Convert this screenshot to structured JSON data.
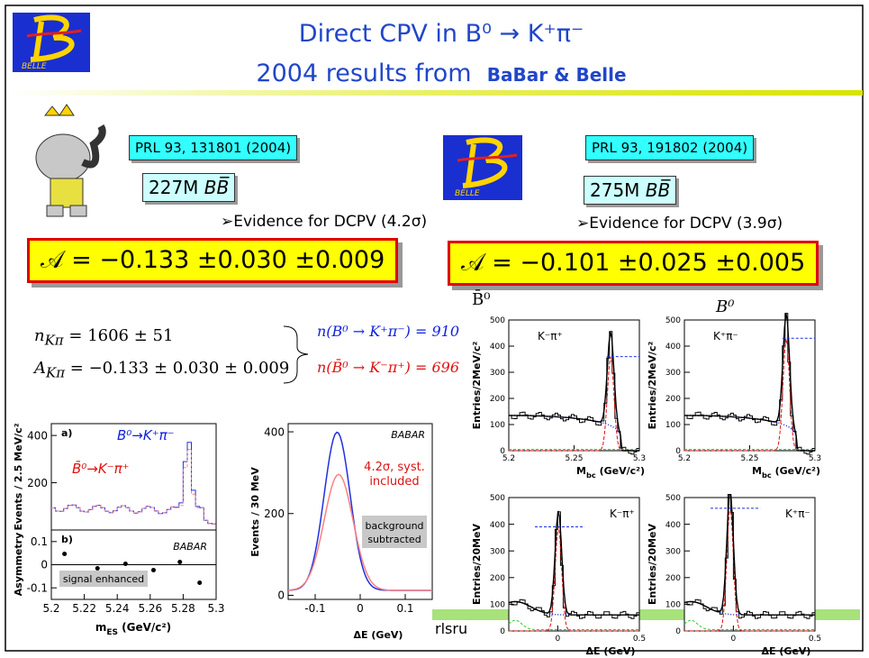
{
  "header": {
    "title": "Direct CPV in B⁰ → K⁺π⁻",
    "subtitle": "2004 results from",
    "subtitle_emphasis": "BaBar & Belle",
    "logo_label": "BELLE"
  },
  "babar": {
    "reference": "PRL 93, 131801 (2004)",
    "sample": "227M",
    "sample_pair": "BB̅",
    "evidence": "➢Evidence for DCPV (4.2σ)",
    "asymmetry": "𝒜 = −0.133 ±0.030 ±0.009"
  },
  "belle": {
    "logo_label": "BELLE",
    "reference": "PRL 93, 191802 (2004)",
    "sample": "275M",
    "sample_pair": "BB̅",
    "evidence": "➢Evidence for DCPV (3.9σ)",
    "asymmetry": "𝒜 = −0.101 ±0.025 ±0.005"
  },
  "formulas": {
    "n_symbol": "n",
    "n_sub": "Kπ",
    "n_value": " = 1606 ± 51",
    "a_symbol": "A",
    "a_sub": "Kπ",
    "a_value": " = −0.133 ± 0.030 ± 0.009",
    "b0_yield": "n(B⁰ → K⁺π⁻) = 910",
    "b0bar_yield": "n(B̄⁰ → K⁻π⁺) = 696"
  },
  "babar_plots": {
    "mes": {
      "label_a": "a)",
      "label_b": "b)",
      "signal_b0": "B⁰→K⁺π⁻",
      "signal_b0bar": "B̄⁰→K⁻π⁺",
      "y_label": "Events / 2.5 MeV/c²",
      "ylim": [
        0,
        450
      ],
      "yticks": [
        400,
        200
      ],
      "experiment": "BABAR",
      "asym_label": "Asymmetry",
      "asym_ylim": [
        -0.15,
        0.15
      ],
      "asym_ticks": [
        0.1,
        0,
        -0.1
      ],
      "box": "signal enhanced",
      "xlim": [
        5.2,
        5.3
      ],
      "xticks": [
        5.2,
        5.22,
        5.24,
        5.26,
        5.28,
        5.3
      ],
      "x_label": {
        "main": "m",
        "sub": "ES",
        "unit": " (GeV/c²)"
      }
    },
    "de": {
      "y_label": "Events / 30 MeV",
      "ylim": [
        -10,
        420
      ],
      "yticks": [
        0,
        200,
        400
      ],
      "xlim": [
        -0.16,
        0.16
      ],
      "xticks": [
        -0.1,
        0,
        0.1
      ],
      "experiment": "BABAR",
      "note": [
        "4.2σ, syst.",
        "included"
      ],
      "box": [
        "background",
        "subtracted"
      ],
      "x_label": "ΔE (GeV)"
    }
  },
  "belle_plots": {
    "b0bar": "B̄⁰",
    "b0": "B⁰",
    "panels": [
      {
        "mode": "K⁻π⁺",
        "y_label": "Entries/2MeV/c²",
        "ylim": [
          0,
          500
        ],
        "yticks": [
          0,
          100,
          200,
          300,
          400,
          500
        ],
        "xlim": [
          5.2,
          5.3
        ],
        "xticks": [
          5.2,
          5.25,
          5.3
        ],
        "x_label": {
          "main": "M",
          "sub": "bc",
          "unit": " (GeV/c²)"
        }
      },
      {
        "mode": "K⁺π⁻",
        "y_label": "Entries/2MeV/c²",
        "ylim": [
          0,
          500
        ],
        "yticks": [
          0,
          100,
          200,
          300,
          400,
          500
        ],
        "xlim": [
          5.2,
          5.3
        ],
        "xticks": [
          5.2,
          5.25,
          5.3
        ],
        "x_label": {
          "main": "M",
          "sub": "bc",
          "unit": " (GeV/c²)"
        }
      },
      {
        "mode": "K⁻π⁺",
        "y_label": "Entries/20MeV",
        "ylim": [
          0,
          500
        ],
        "yticks": [
          0,
          100,
          200,
          300,
          400,
          500
        ],
        "xlim": [
          -0.3,
          0.5
        ],
        "xticks": [
          0,
          0.5
        ],
        "x_label": "ΔE (GeV)"
      },
      {
        "mode": "K⁺π⁻",
        "y_label": "Entries/20MeV",
        "ylim": [
          0,
          500
        ],
        "yticks": [
          0,
          100,
          200,
          300,
          400,
          500
        ],
        "xlim": [
          -0.3,
          0.5
        ],
        "xticks": [
          0,
          0.5
        ],
        "x_label": "ΔE (GeV)"
      }
    ]
  },
  "footer": "rlsru"
}
